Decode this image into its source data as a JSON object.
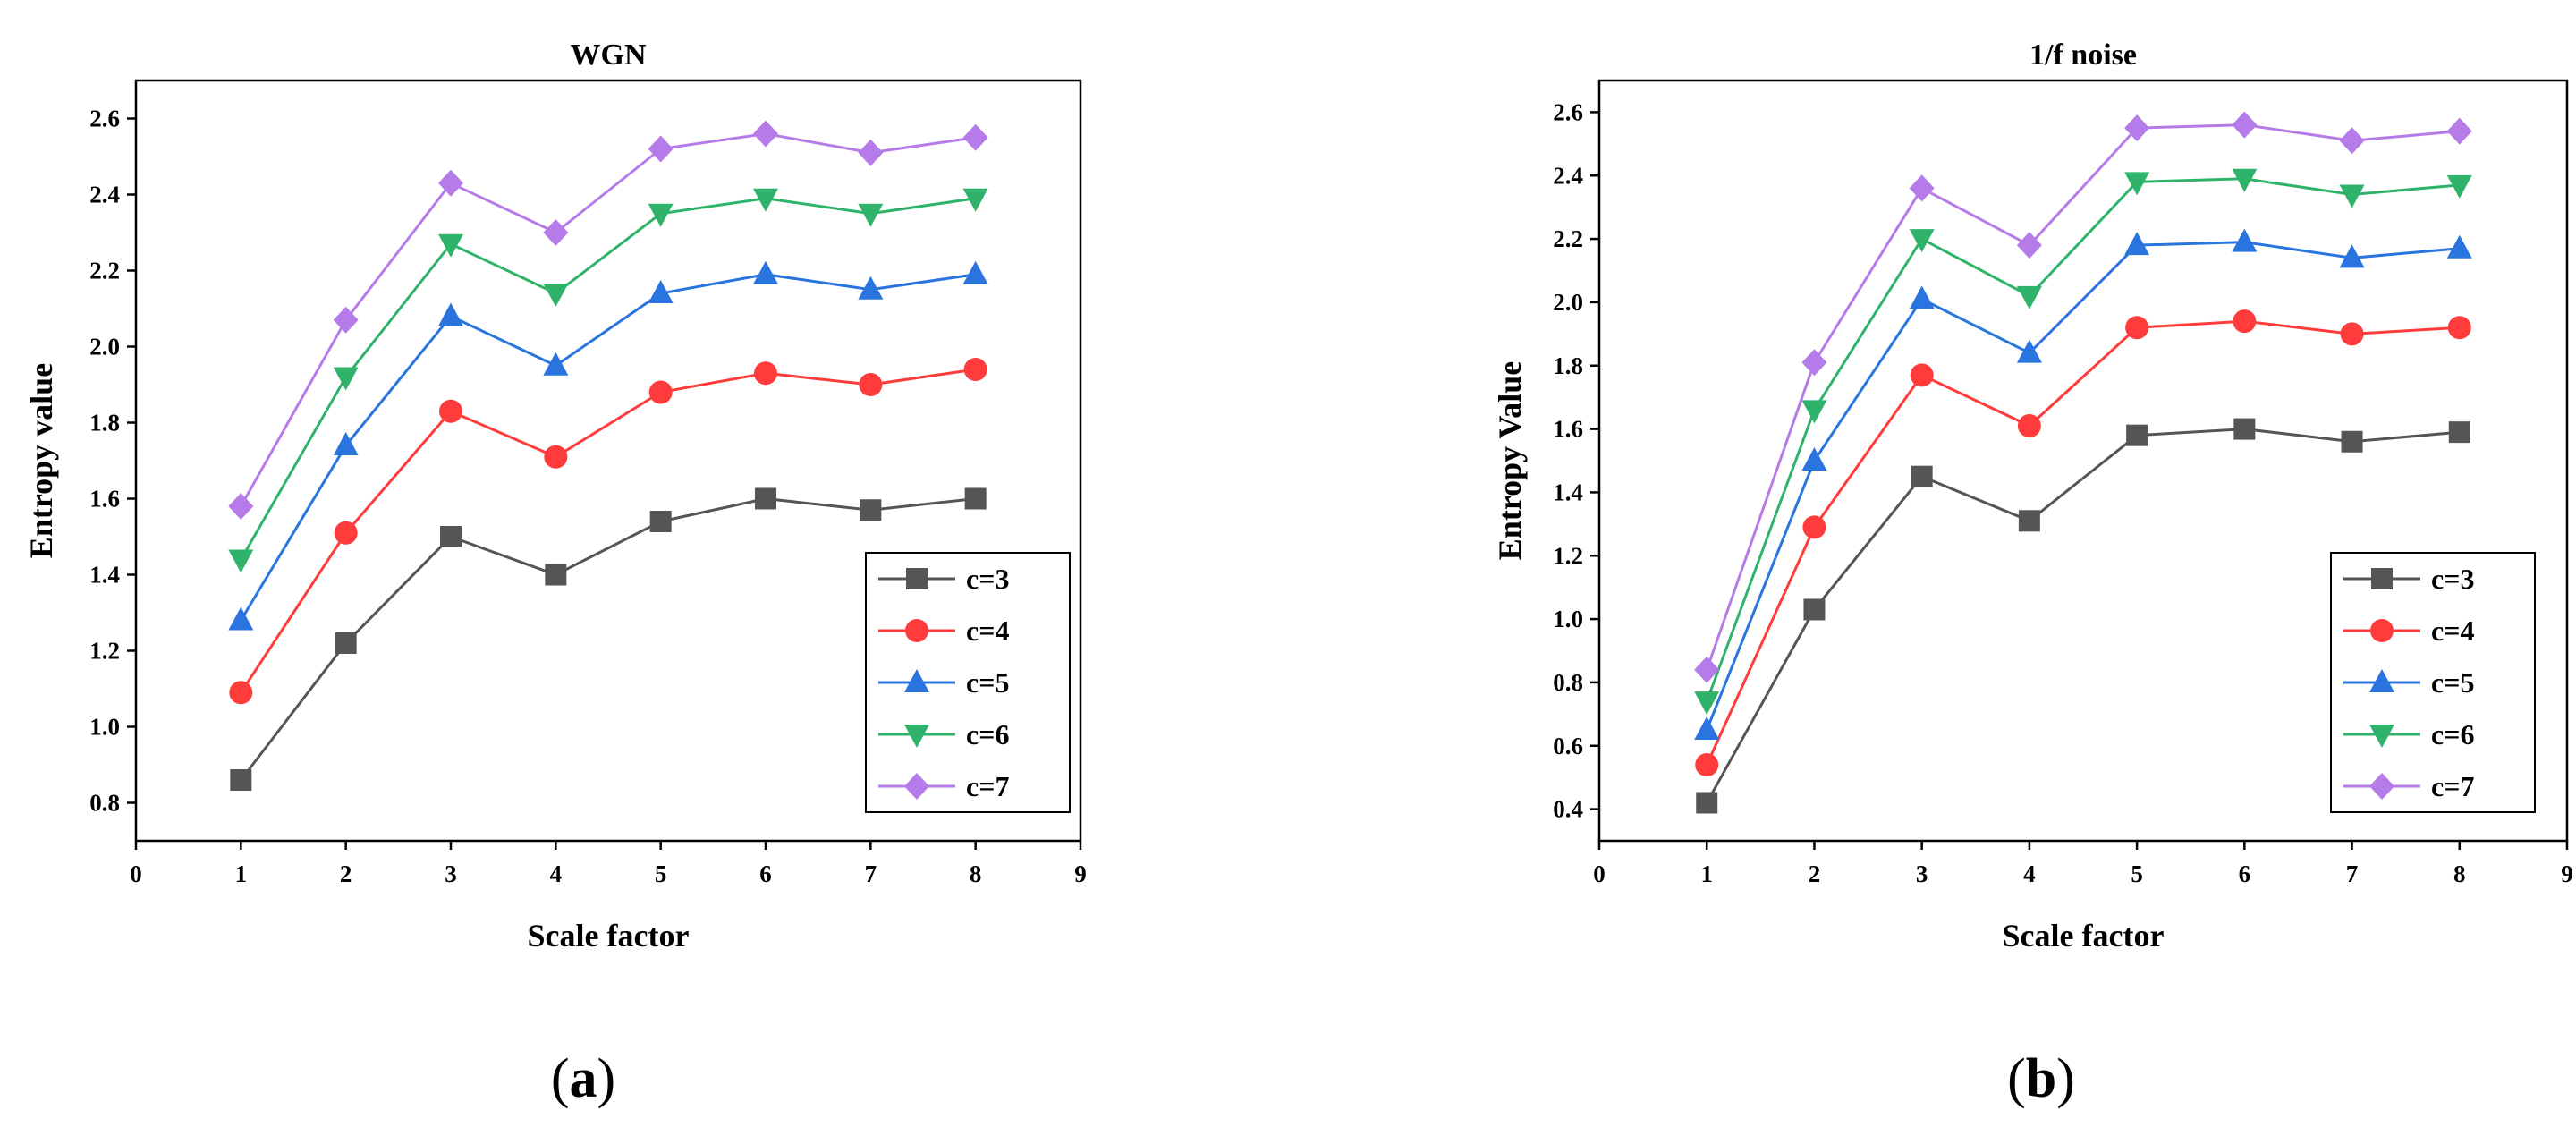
{
  "chart_data": [
    {
      "type": "line",
      "title": "WGN",
      "xlabel": "Scale factor",
      "ylabel": "Entropy value",
      "panel_label": "a",
      "xlim": [
        0,
        9
      ],
      "ylim": [
        0.7,
        2.7
      ],
      "x_ticks": [
        "0",
        "1",
        "2",
        "3",
        "4",
        "5",
        "6",
        "7",
        "8",
        "9"
      ],
      "y_ticks": [
        "0.8",
        "1.0",
        "1.2",
        "1.4",
        "1.6",
        "1.8",
        "2.0",
        "2.2",
        "2.4",
        "2.6"
      ],
      "legend_position": "bottom-right",
      "x": [
        1,
        2,
        3,
        4,
        5,
        6,
        7,
        8
      ],
      "series": [
        {
          "name": "c=3",
          "color": "#555555",
          "marker": "square",
          "values": [
            0.86,
            1.22,
            1.5,
            1.4,
            1.54,
            1.6,
            1.57,
            1.6
          ]
        },
        {
          "name": "c=4",
          "color": "#ff3b3b",
          "marker": "circle",
          "values": [
            1.09,
            1.51,
            1.83,
            1.71,
            1.88,
            1.93,
            1.9,
            1.94
          ]
        },
        {
          "name": "c=5",
          "color": "#2a74e0",
          "marker": "triangle-up",
          "values": [
            1.28,
            1.74,
            2.08,
            1.95,
            2.14,
            2.19,
            2.15,
            2.19
          ]
        },
        {
          "name": "c=6",
          "color": "#2fb36b",
          "marker": "triangle-down",
          "values": [
            1.44,
            1.92,
            2.27,
            2.14,
            2.35,
            2.39,
            2.35,
            2.39
          ]
        },
        {
          "name": "c=7",
          "color": "#b57be8",
          "marker": "diamond",
          "values": [
            1.58,
            2.07,
            2.43,
            2.3,
            2.52,
            2.56,
            2.51,
            2.55
          ]
        }
      ]
    },
    {
      "type": "line",
      "title": "1/f noise",
      "xlabel": "Scale factor",
      "ylabel": "Entropy Value",
      "panel_label": "b",
      "xlim": [
        0,
        9
      ],
      "ylim": [
        0.3,
        2.7
      ],
      "x_ticks": [
        "0",
        "1",
        "2",
        "3",
        "4",
        "5",
        "6",
        "7",
        "8",
        "9"
      ],
      "y_ticks": [
        "0.4",
        "0.6",
        "0.8",
        "1.0",
        "1.2",
        "1.4",
        "1.6",
        "1.8",
        "2.0",
        "2.2",
        "2.4",
        "2.6"
      ],
      "legend_position": "bottom-right",
      "x": [
        1,
        2,
        3,
        4,
        5,
        6,
        7,
        8
      ],
      "series": [
        {
          "name": "c=3",
          "color": "#555555",
          "marker": "square",
          "values": [
            0.42,
            1.03,
            1.45,
            1.31,
            1.58,
            1.6,
            1.56,
            1.59
          ]
        },
        {
          "name": "c=4",
          "color": "#ff3b3b",
          "marker": "circle",
          "values": [
            0.54,
            1.29,
            1.77,
            1.61,
            1.92,
            1.94,
            1.9,
            1.92
          ]
        },
        {
          "name": "c=5",
          "color": "#2a74e0",
          "marker": "triangle-up",
          "values": [
            0.65,
            1.5,
            2.01,
            1.84,
            2.18,
            2.19,
            2.14,
            2.17
          ]
        },
        {
          "name": "c=6",
          "color": "#2fb36b",
          "marker": "triangle-down",
          "values": [
            0.74,
            1.66,
            2.2,
            2.02,
            2.38,
            2.39,
            2.34,
            2.37
          ]
        },
        {
          "name": "c=7",
          "color": "#b57be8",
          "marker": "diamond",
          "values": [
            0.84,
            1.81,
            2.36,
            2.18,
            2.55,
            2.56,
            2.51,
            2.54
          ]
        }
      ]
    }
  ]
}
